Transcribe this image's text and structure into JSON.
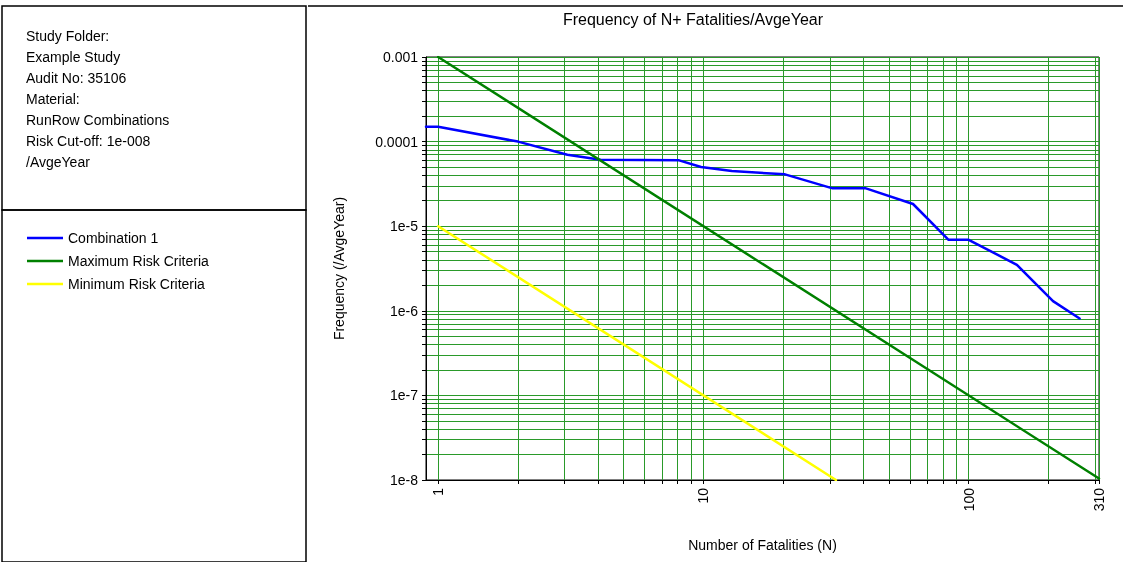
{
  "chart_data": {
    "type": "line",
    "title": "Frequency of N+ Fatalities/AvgeYear",
    "xlabel": "Number of Fatalities (N)",
    "ylabel": "Frequency (/AvgeYear)",
    "annotations": [
      "Study Folder:",
      "Example Study",
      "Audit No: 35106",
      "Material:",
      "RunRow Combinations",
      "Risk Cut-off: 1e-008",
      "/AvgeYear"
    ],
    "log": "xy",
    "grid": true,
    "legend": "left",
    "marker": "none",
    "line_style": "solid",
    "xlim": [
      0.9,
      310
    ],
    "ylim": [
      1e-08,
      0.001
    ],
    "xticks": [
      1,
      {
        "value": 2,
        "label": null
      },
      {
        "value": 3,
        "label": null
      },
      {
        "value": 4,
        "label": null
      },
      {
        "value": 5,
        "label": null
      },
      {
        "value": 6,
        "label": null
      },
      {
        "value": 7,
        "label": null
      },
      {
        "value": 8,
        "label": null
      },
      {
        "value": 9,
        "label": null
      },
      10,
      {
        "value": 20,
        "label": null
      },
      {
        "value": 30,
        "label": null
      },
      {
        "value": 40,
        "label": null
      },
      {
        "value": 50,
        "label": null
      },
      {
        "value": 60,
        "label": null
      },
      {
        "value": 70,
        "label": null
      },
      {
        "value": 80,
        "label": null
      },
      {
        "value": 90,
        "label": null
      },
      100,
      {
        "value": 200,
        "label": null
      },
      {
        "value": 300,
        "label": null
      },
      310
    ],
    "yticks": [
      {
        "value": 1e-08,
        "label": "1e-8"
      },
      {
        "value": 2e-08,
        "label": null
      },
      {
        "value": 3e-08,
        "label": null
      },
      {
        "value": 4e-08,
        "label": null
      },
      {
        "value": 5e-08,
        "label": null
      },
      {
        "value": 6e-08,
        "label": null
      },
      {
        "value": 7e-08,
        "label": null
      },
      {
        "value": 8e-08,
        "label": null
      },
      {
        "value": 9e-08,
        "label": null
      },
      {
        "value": 1e-07,
        "label": "1e-7"
      },
      {
        "value": 2e-07,
        "label": null
      },
      {
        "value": 3e-07,
        "label": null
      },
      {
        "value": 4e-07,
        "label": null
      },
      {
        "value": 5e-07,
        "label": null
      },
      {
        "value": 6e-07,
        "label": null
      },
      {
        "value": 7e-07,
        "label": null
      },
      {
        "value": 8e-07,
        "label": null
      },
      {
        "value": 9e-07,
        "label": null
      },
      {
        "value": 1e-06,
        "label": "1e-6"
      },
      {
        "value": 2e-06,
        "label": null
      },
      {
        "value": 3e-06,
        "label": null
      },
      {
        "value": 4e-06,
        "label": null
      },
      {
        "value": 5e-06,
        "label": null
      },
      {
        "value": 6e-06,
        "label": null
      },
      {
        "value": 7e-06,
        "label": null
      },
      {
        "value": 8e-06,
        "label": null
      },
      {
        "value": 9e-06,
        "label": null
      },
      {
        "value": 1e-05,
        "label": "1e-5"
      },
      {
        "value": 2e-05,
        "label": null
      },
      {
        "value": 3e-05,
        "label": null
      },
      {
        "value": 4e-05,
        "label": null
      },
      {
        "value": 5e-05,
        "label": null
      },
      {
        "value": 6e-05,
        "label": null
      },
      {
        "value": 7e-05,
        "label": null
      },
      {
        "value": 8e-05,
        "label": null
      },
      {
        "value": 9e-05,
        "label": null
      },
      0.0001,
      {
        "value": 0.0002,
        "label": null
      },
      {
        "value": 0.0003,
        "label": null
      },
      {
        "value": 0.0004,
        "label": null
      },
      {
        "value": 0.0005,
        "label": null
      },
      {
        "value": 0.0006,
        "label": null
      },
      {
        "value": 0.0007,
        "label": null
      },
      {
        "value": 0.0008,
        "label": null
      },
      {
        "value": 0.0009,
        "label": null
      },
      0.001
    ],
    "series": [
      {
        "name": "Combination 1",
        "color": "#0000ff",
        "x": [
          0.9,
          1,
          2,
          3.07,
          4.1,
          8.1,
          9.8,
          12.8,
          20.3,
          30.7,
          41,
          61.7,
          84,
          100,
          152,
          208,
          262
        ],
        "values": [
          0.00015,
          0.00015,
          0.0001,
          7e-05,
          6.1e-05,
          6e-05,
          5e-05,
          4.5e-05,
          4.1e-05,
          2.8e-05,
          2.8e-05,
          1.83e-05,
          6.9e-06,
          6.9e-06,
          3.5e-06,
          1.3e-06,
          8.1e-07
        ]
      },
      {
        "name": "Maximum Risk Criteria",
        "color": "#008000",
        "x": [
          1,
          310
        ],
        "values": [
          0.001,
          1.04e-08
        ]
      },
      {
        "name": "Minimum Risk Criteria",
        "color": "#ffff00",
        "x": [
          1,
          31.6
        ],
        "values": [
          1e-05,
          1e-08
        ]
      }
    ]
  }
}
